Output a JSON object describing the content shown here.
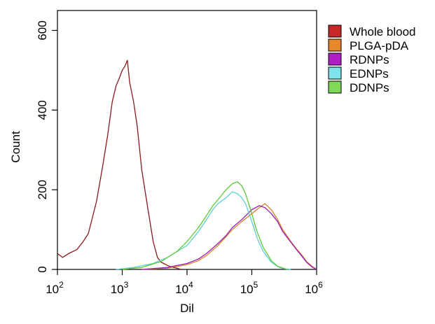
{
  "chart_data": {
    "type": "line",
    "title": "",
    "xlabel": "Dil",
    "ylabel": "Count",
    "xscale": "log",
    "xlim": [
      100,
      1000000
    ],
    "ylim": [
      0,
      650
    ],
    "grid": false,
    "legend_position": "right",
    "x_ticks": [
      {
        "value": 100,
        "base": "10",
        "exp": "2"
      },
      {
        "value": 1000,
        "base": "10",
        "exp": "3"
      },
      {
        "value": 10000,
        "base": "10",
        "exp": "4"
      },
      {
        "value": 100000,
        "base": "10",
        "exp": "5"
      },
      {
        "value": 1000000,
        "base": "10",
        "exp": "6"
      }
    ],
    "y_ticks": [
      {
        "value": 0,
        "label": "0"
      },
      {
        "value": 200,
        "label": "200"
      },
      {
        "value": 400,
        "label": "400"
      },
      {
        "value": 600,
        "label": "600"
      }
    ],
    "series": [
      {
        "name": "Whole blood",
        "color": "#8b1a1a",
        "legend_fill": "#c62828",
        "x": [
          100,
          120,
          150,
          200,
          250,
          300,
          400,
          500,
          600,
          700,
          800,
          900,
          1000,
          1100,
          1200,
          1300,
          1500,
          1700,
          2000,
          2500,
          3000,
          3500,
          4000,
          5000,
          6000,
          7000,
          8000
        ],
        "y": [
          40,
          30,
          40,
          50,
          70,
          90,
          170,
          260,
          340,
          420,
          460,
          480,
          500,
          510,
          525,
          470,
          420,
          360,
          250,
          150,
          70,
          30,
          18,
          10,
          5,
          3,
          0
        ]
      },
      {
        "name": "PLGA-pDA",
        "color": "#d4862e",
        "legend_fill": "#e8872a",
        "x": [
          2000,
          5000,
          10000,
          15000,
          20000,
          30000,
          40000,
          50000,
          70000,
          100000,
          130000,
          160000,
          200000,
          250000,
          300000,
          400000,
          500000,
          600000,
          700000,
          850000,
          1000000
        ],
        "y": [
          0,
          3,
          12,
          22,
          35,
          60,
          82,
          100,
          120,
          140,
          155,
          165,
          150,
          125,
          100,
          70,
          50,
          35,
          20,
          8,
          0
        ]
      },
      {
        "name": "RDNPs",
        "color": "#9b1bb0",
        "legend_fill": "#b01fc4",
        "x": [
          2000,
          5000,
          10000,
          15000,
          20000,
          30000,
          40000,
          50000,
          70000,
          100000,
          130000,
          160000,
          200000,
          250000,
          300000,
          400000,
          500000,
          600000,
          700000,
          850000,
          1000000
        ],
        "y": [
          0,
          5,
          15,
          26,
          40,
          65,
          85,
          105,
          125,
          150,
          160,
          155,
          140,
          120,
          95,
          68,
          48,
          32,
          18,
          6,
          0
        ]
      },
      {
        "name": "EDNPs",
        "color": "#5ccfd6",
        "legend_fill": "#7fe3ea",
        "x": [
          800,
          1500,
          3000,
          5000,
          7000,
          10000,
          15000,
          20000,
          25000,
          30000,
          40000,
          50000,
          60000,
          70000,
          80000,
          100000,
          120000,
          150000,
          200000,
          250000,
          300000,
          400000
        ],
        "y": [
          0,
          5,
          15,
          30,
          45,
          60,
          95,
          125,
          150,
          165,
          180,
          195,
          190,
          180,
          165,
          120,
          80,
          45,
          18,
          7,
          2,
          0
        ]
      },
      {
        "name": "DDNPs",
        "color": "#5cc832",
        "legend_fill": "#7ed957",
        "x": [
          1000,
          2000,
          4000,
          7000,
          10000,
          15000,
          20000,
          25000,
          30000,
          40000,
          50000,
          60000,
          70000,
          80000,
          100000,
          120000,
          150000,
          200000,
          250000,
          350000
        ],
        "y": [
          0,
          5,
          20,
          45,
          70,
          105,
          135,
          160,
          175,
          200,
          215,
          220,
          210,
          190,
          140,
          95,
          55,
          22,
          8,
          0
        ]
      }
    ]
  }
}
